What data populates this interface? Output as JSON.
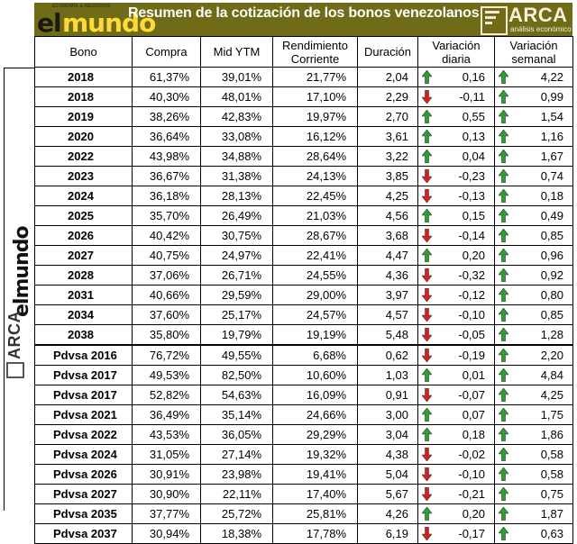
{
  "header": {
    "title": "Resumen de la cotización de los bonos venezolanos",
    "logo_left": {
      "small": "ECONOMÍA & NEGOCIOS",
      "el": "el",
      "mundo": "mundo"
    },
    "logo_right": {
      "name": "ARCA",
      "tagline": "análisis económico"
    }
  },
  "columns": [
    "Bono",
    "Compra",
    "Mid YTM",
    "Rendimiento Corriente",
    "Duración",
    "Variación diaria",
    "Variación semanal"
  ],
  "colors": {
    "banner": "#6f6b16",
    "up": "#2e9d32",
    "down": "#d32020"
  },
  "rows": [
    {
      "bono": "2018",
      "compra": "61,37%",
      "mid": "39,01%",
      "rend": "21,77%",
      "dur": "2,04",
      "vd": "0,16",
      "vd_dir": "up",
      "vs": "4,22",
      "vs_dir": "up"
    },
    {
      "bono": "2018",
      "compra": "40,30%",
      "mid": "48,01%",
      "rend": "17,10%",
      "dur": "2,29",
      "vd": "-0,11",
      "vd_dir": "down",
      "vs": "0,99",
      "vs_dir": "up"
    },
    {
      "bono": "2019",
      "compra": "38,26%",
      "mid": "42,83%",
      "rend": "19,97%",
      "dur": "2,70",
      "vd": "0,55",
      "vd_dir": "up",
      "vs": "1,54",
      "vs_dir": "up"
    },
    {
      "bono": "2020",
      "compra": "36,64%",
      "mid": "33,08%",
      "rend": "16,12%",
      "dur": "3,61",
      "vd": "0,13",
      "vd_dir": "up",
      "vs": "1,16",
      "vs_dir": "up"
    },
    {
      "bono": "2022",
      "compra": "43,98%",
      "mid": "34,88%",
      "rend": "28,64%",
      "dur": "3,22",
      "vd": "0,04",
      "vd_dir": "up",
      "vs": "1,67",
      "vs_dir": "up"
    },
    {
      "bono": "2023",
      "compra": "36,67%",
      "mid": "31,38%",
      "rend": "24,13%",
      "dur": "3,85",
      "vd": "-0,23",
      "vd_dir": "down",
      "vs": "0,74",
      "vs_dir": "up"
    },
    {
      "bono": "2024",
      "compra": "36,18%",
      "mid": "28,13%",
      "rend": "22,45%",
      "dur": "4,25",
      "vd": "-0,13",
      "vd_dir": "down",
      "vs": "0,18",
      "vs_dir": "up"
    },
    {
      "bono": "2025",
      "compra": "35,70%",
      "mid": "26,49%",
      "rend": "21,03%",
      "dur": "4,56",
      "vd": "0,15",
      "vd_dir": "up",
      "vs": "0,49",
      "vs_dir": "up"
    },
    {
      "bono": "2026",
      "compra": "40,42%",
      "mid": "30,75%",
      "rend": "28,67%",
      "dur": "3,68",
      "vd": "-0,14",
      "vd_dir": "down",
      "vs": "0,85",
      "vs_dir": "up"
    },
    {
      "bono": "2027",
      "compra": "40,75%",
      "mid": "24,97%",
      "rend": "22,41%",
      "dur": "4,47",
      "vd": "0,20",
      "vd_dir": "up",
      "vs": "0,96",
      "vs_dir": "up"
    },
    {
      "bono": "2028",
      "compra": "37,06%",
      "mid": "26,71%",
      "rend": "24,55%",
      "dur": "4,36",
      "vd": "-0,32",
      "vd_dir": "down",
      "vs": "0,92",
      "vs_dir": "up"
    },
    {
      "bono": "2031",
      "compra": "40,66%",
      "mid": "29,59%",
      "rend": "29,00%",
      "dur": "3,97",
      "vd": "-0,12",
      "vd_dir": "down",
      "vs": "0,80",
      "vs_dir": "up"
    },
    {
      "bono": "2034",
      "compra": "37,60%",
      "mid": "25,17%",
      "rend": "24,57%",
      "dur": "4,57",
      "vd": "-0,10",
      "vd_dir": "down",
      "vs": "0,85",
      "vs_dir": "up"
    },
    {
      "bono": "2038",
      "compra": "35,80%",
      "mid": "19,79%",
      "rend": "19,19%",
      "dur": "5,48",
      "vd": "-0,05",
      "vd_dir": "down",
      "vs": "1,28",
      "vs_dir": "up"
    },
    {
      "bono": "Pdvsa 2016",
      "compra": "76,72%",
      "mid": "49,55%",
      "rend": "6,68%",
      "dur": "0,62",
      "vd": "-0,19",
      "vd_dir": "down",
      "vs": "2,20",
      "vs_dir": "up",
      "section_start": true
    },
    {
      "bono": "Pdvsa 2017",
      "compra": "49,53%",
      "mid": "82,50%",
      "rend": "10,60%",
      "dur": "1,03",
      "vd": "0,01",
      "vd_dir": "up",
      "vs": "4,84",
      "vs_dir": "up"
    },
    {
      "bono": "Pdvsa 2017",
      "compra": "52,82%",
      "mid": "54,63%",
      "rend": "16,09%",
      "dur": "0,91",
      "vd": "-0,07",
      "vd_dir": "down",
      "vs": "4,25",
      "vs_dir": "up"
    },
    {
      "bono": "Pdvsa 2021",
      "compra": "36,49%",
      "mid": "35,14%",
      "rend": "24,66%",
      "dur": "3,00",
      "vd": "0,07",
      "vd_dir": "up",
      "vs": "1,75",
      "vs_dir": "up"
    },
    {
      "bono": "Pdvsa 2022",
      "compra": "43,53%",
      "mid": "36,05%",
      "rend": "29,29%",
      "dur": "3,04",
      "vd": "0,18",
      "vd_dir": "up",
      "vs": "1,86",
      "vs_dir": "up"
    },
    {
      "bono": "Pdvsa 2024",
      "compra": "31,05%",
      "mid": "27,14%",
      "rend": "19,32%",
      "dur": "4,38",
      "vd": "-0,02",
      "vd_dir": "down",
      "vs": "0,58",
      "vs_dir": "up"
    },
    {
      "bono": "Pdvsa 2026",
      "compra": "30,91%",
      "mid": "23,98%",
      "rend": "19,41%",
      "dur": "5,04",
      "vd": "-0,10",
      "vd_dir": "down",
      "vs": "0,58",
      "vs_dir": "up"
    },
    {
      "bono": "Pdvsa 2027",
      "compra": "30,90%",
      "mid": "22,11%",
      "rend": "17,40%",
      "dur": "5,67",
      "vd": "-0,21",
      "vd_dir": "down",
      "vs": "0,75",
      "vs_dir": "up"
    },
    {
      "bono": "Pdvsa 2035",
      "compra": "37,77%",
      "mid": "25,72%",
      "rend": "25,81%",
      "dur": "4,26",
      "vd": "0,20",
      "vd_dir": "up",
      "vs": "1,87",
      "vs_dir": "up"
    },
    {
      "bono": "Pdvsa 2037",
      "compra": "30,94%",
      "mid": "18,38%",
      "rend": "17,78%",
      "dur": "6,19",
      "vd": "-0,17",
      "vd_dir": "down",
      "vs": "0,63",
      "vs_dir": "up"
    }
  ]
}
